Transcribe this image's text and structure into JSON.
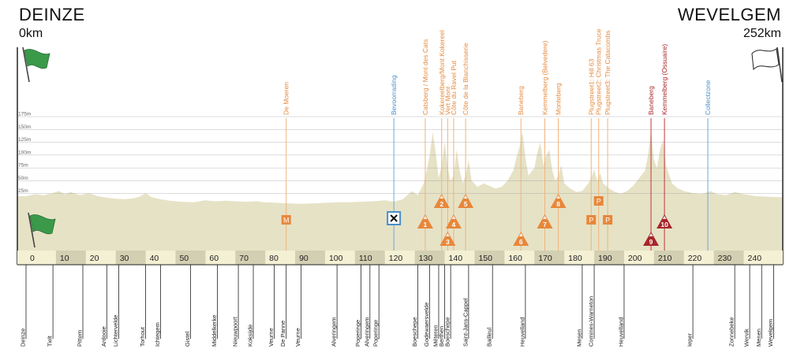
{
  "header": {
    "start_name": "DEINZE",
    "start_km": "0km",
    "finish_name": "WEVELGEM",
    "finish_km": "252km"
  },
  "colors": {
    "profile_fill": "#e6e2c6",
    "strip_light": "#f3f0d4",
    "strip_dark": "#d3cfb2",
    "climb_orange": "#e8873a",
    "climb_red": "#a8252a",
    "line_orange": "#f1b37a",
    "line_red": "#c0363a",
    "line_blue": "#6aaad8",
    "text_orange": "#e58a3c",
    "text_red": "#a8252a",
    "text_blue": "#4a8ec8",
    "flag_green": "#3a9a4a"
  },
  "chart_data": {
    "type": "area",
    "title": "",
    "xlabel": "",
    "ylabel": "",
    "x_unit": "km",
    "y_unit": "m",
    "xlim": [
      0,
      252
    ],
    "ylim": [
      0,
      175
    ],
    "x_ticks": [
      0,
      10,
      20,
      30,
      40,
      50,
      60,
      70,
      80,
      90,
      100,
      110,
      120,
      130,
      140,
      150,
      160,
      170,
      180,
      190,
      200,
      210,
      220,
      230,
      240
    ],
    "y_ticks": [
      {
        "value": 25,
        "label": "25m"
      },
      {
        "value": 50,
        "label": "50m"
      },
      {
        "value": 75,
        "label": "75m"
      },
      {
        "value": 100,
        "label": "100m"
      },
      {
        "value": 125,
        "label": "125m"
      },
      {
        "value": 150,
        "label": "150m"
      },
      {
        "value": 175,
        "label": "175m"
      }
    ],
    "grid": true,
    "profile": [
      [
        0,
        20
      ],
      [
        3,
        24
      ],
      [
        6,
        22
      ],
      [
        9,
        26
      ],
      [
        11,
        30
      ],
      [
        13,
        24
      ],
      [
        15,
        28
      ],
      [
        18,
        22
      ],
      [
        21,
        26
      ],
      [
        24,
        20
      ],
      [
        27,
        17
      ],
      [
        30,
        15
      ],
      [
        33,
        14
      ],
      [
        36,
        16
      ],
      [
        38,
        19
      ],
      [
        40,
        26
      ],
      [
        42,
        18
      ],
      [
        45,
        14
      ],
      [
        48,
        11
      ],
      [
        52,
        9
      ],
      [
        56,
        8
      ],
      [
        60,
        12
      ],
      [
        63,
        10
      ],
      [
        67,
        11
      ],
      [
        70,
        10
      ],
      [
        74,
        9
      ],
      [
        77,
        10
      ],
      [
        80,
        8
      ],
      [
        84,
        7
      ],
      [
        88,
        6
      ],
      [
        92,
        5
      ],
      [
        96,
        6
      ],
      [
        100,
        7
      ],
      [
        104,
        8
      ],
      [
        108,
        8
      ],
      [
        112,
        9
      ],
      [
        116,
        10
      ],
      [
        120,
        12
      ],
      [
        123,
        9
      ],
      [
        126,
        14
      ],
      [
        129,
        30
      ],
      [
        131,
        22
      ],
      [
        133,
        45
      ],
      [
        134,
        70
      ],
      [
        135,
        100
      ],
      [
        136,
        145
      ],
      [
        137,
        105
      ],
      [
        138,
        55
      ],
      [
        139,
        80
      ],
      [
        140,
        125
      ],
      [
        141,
        75
      ],
      [
        142,
        50
      ],
      [
        143,
        60
      ],
      [
        144,
        110
      ],
      [
        145,
        70
      ],
      [
        146,
        45
      ],
      [
        147,
        60
      ],
      [
        148,
        90
      ],
      [
        149,
        50
      ],
      [
        151,
        38
      ],
      [
        153,
        45
      ],
      [
        155,
        40
      ],
      [
        157,
        35
      ],
      [
        159,
        38
      ],
      [
        161,
        50
      ],
      [
        163,
        70
      ],
      [
        164,
        95
      ],
      [
        165,
        115
      ],
      [
        166,
        145
      ],
      [
        167,
        95
      ],
      [
        168,
        60
      ],
      [
        170,
        75
      ],
      [
        171,
        105
      ],
      [
        172,
        125
      ],
      [
        173,
        80
      ],
      [
        174,
        100
      ],
      [
        175,
        110
      ],
      [
        176,
        70
      ],
      [
        177,
        50
      ],
      [
        178,
        60
      ],
      [
        179,
        80
      ],
      [
        180,
        45
      ],
      [
        182,
        35
      ],
      [
        184,
        28
      ],
      [
        186,
        30
      ],
      [
        188,
        45
      ],
      [
        189,
        55
      ],
      [
        190,
        72
      ],
      [
        191,
        50
      ],
      [
        192,
        65
      ],
      [
        193,
        45
      ],
      [
        195,
        35
      ],
      [
        197,
        28
      ],
      [
        199,
        25
      ],
      [
        201,
        30
      ],
      [
        203,
        40
      ],
      [
        205,
        55
      ],
      [
        207,
        70
      ],
      [
        208,
        100
      ],
      [
        209,
        145
      ],
      [
        210,
        90
      ],
      [
        211,
        75
      ],
      [
        212,
        110
      ],
      [
        213,
        130
      ],
      [
        214,
        80
      ],
      [
        216,
        45
      ],
      [
        218,
        35
      ],
      [
        220,
        30
      ],
      [
        223,
        26
      ],
      [
        226,
        24
      ],
      [
        229,
        30
      ],
      [
        231,
        24
      ],
      [
        234,
        22
      ],
      [
        237,
        28
      ],
      [
        240,
        24
      ],
      [
        244,
        20
      ],
      [
        248,
        19
      ],
      [
        252,
        18
      ]
    ],
    "climbs": [
      {
        "num": "1",
        "km": 133.5,
        "name": "Catsberg / Mont des Cats",
        "color": "orange",
        "row": 1
      },
      {
        "num": "2",
        "km": 139,
        "name": "Kokereelberg/Mont Kokereel",
        "color": "orange",
        "row": 0
      },
      {
        "num": "3",
        "km": 141,
        "name": "Vert Mont",
        "color": "orange",
        "row": 2
      },
      {
        "num": "4",
        "km": 143,
        "name": "Côte du Ravel Put",
        "color": "orange",
        "row": 1
      },
      {
        "num": "5",
        "km": 147,
        "name": "Côte de la Blanchisserie",
        "color": "orange",
        "row": 0
      },
      {
        "num": "6",
        "km": 165.5,
        "name": "Baneberg",
        "color": "orange",
        "row": 2
      },
      {
        "num": "7",
        "km": 173.5,
        "name": "Kemmelberg (Belvedere)",
        "color": "orange",
        "row": 1
      },
      {
        "num": "8",
        "km": 178,
        "name": "Monteberg",
        "color": "orange",
        "row": 0
      },
      {
        "num": "9",
        "km": 209,
        "name": "Baneberg",
        "color": "red",
        "row": 2
      },
      {
        "num": "10",
        "km": 213.5,
        "name": "Kemmelberg (Ossuaire)",
        "color": "red",
        "row": 1
      }
    ],
    "markers": [
      {
        "km": 87,
        "type": "M",
        "name": "De Moeren",
        "color": "orange"
      },
      {
        "km": 189,
        "type": "P",
        "name": "Plugstreet1: Hill 63",
        "color": "orange",
        "row": 1
      },
      {
        "km": 191.5,
        "type": "P",
        "name": "Plugstreet2: Christmas Truce",
        "color": "orange",
        "row": 0
      },
      {
        "km": 194.5,
        "type": "P",
        "name": "Plugstreet3: The Catacombs",
        "color": "orange",
        "row": 1
      },
      {
        "km": 123,
        "type": "feed",
        "name": "Bevoorrading",
        "color": "blue"
      },
      {
        "km": 228,
        "type": "collect",
        "name": "Collectzone",
        "color": "blue"
      }
    ],
    "towns": [
      {
        "km": 0,
        "name": "Deinze"
      },
      {
        "km": 9,
        "name": "Tielt"
      },
      {
        "km": 19,
        "name": "Pittem"
      },
      {
        "km": 27,
        "name": "Ardooie"
      },
      {
        "km": 31,
        "name": "Lichtervelde"
      },
      {
        "km": 40,
        "name": "Torhout"
      },
      {
        "km": 45,
        "name": "Ichtegem"
      },
      {
        "km": 55,
        "name": "Gistel"
      },
      {
        "km": 64,
        "name": "Middelkerke"
      },
      {
        "km": 71,
        "name": "Nieuwpoort"
      },
      {
        "km": 76,
        "name": "Koksijde"
      },
      {
        "km": 83,
        "name": "Veurne"
      },
      {
        "km": 87,
        "name": "De Panne"
      },
      {
        "km": 92,
        "name": "Veurne"
      },
      {
        "km": 104,
        "name": "Alveringem"
      },
      {
        "km": 112,
        "name": "Poperinge"
      },
      {
        "km": 115,
        "name": "Alveringem"
      },
      {
        "km": 118,
        "name": "Poperinge"
      },
      {
        "km": 131,
        "name": "Boeschepe"
      },
      {
        "km": 135,
        "name": "Godewaersvelde"
      },
      {
        "km": 138,
        "name": "Méteren"
      },
      {
        "km": 140,
        "name": "Berthen"
      },
      {
        "km": 142,
        "name": "Boeschepe"
      },
      {
        "km": 148,
        "name": "Saint-Jans-Cappel"
      },
      {
        "km": 156,
        "name": "Bailleul"
      },
      {
        "km": 167,
        "name": "Heuvelland"
      },
      {
        "km": 186,
        "name": "Mesen"
      },
      {
        "km": 190,
        "name": "Comines-Warneton"
      },
      {
        "km": 200,
        "name": "Heuvelland"
      },
      {
        "km": 223,
        "name": "Ieper"
      },
      {
        "km": 237,
        "name": "Zonnebeke"
      },
      {
        "km": 242,
        "name": "Wervik"
      },
      {
        "km": 246,
        "name": "Menen"
      },
      {
        "km": 250,
        "name": "Wevelgem"
      }
    ]
  }
}
